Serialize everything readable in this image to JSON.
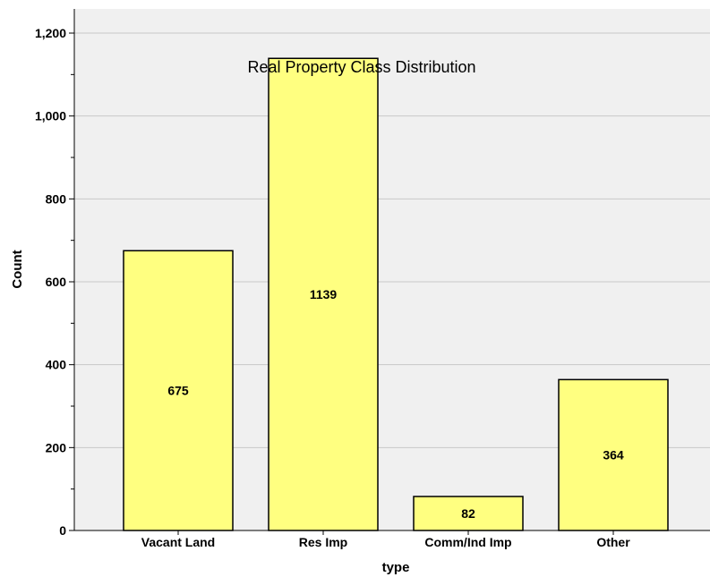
{
  "chart_data": {
    "type": "bar",
    "title": "Real Property Class Distribution",
    "xlabel": "type",
    "ylabel": "Count",
    "categories": [
      "Vacant Land",
      "Res Imp",
      "Comm/Ind Imp",
      "Other"
    ],
    "values": [
      675,
      1139,
      82,
      364
    ],
    "ylim": [
      0,
      1200
    ],
    "yticks": [
      "0",
      "200",
      "400",
      "600",
      "800",
      "1,000",
      "1,200"
    ],
    "ytick_values": [
      0,
      200,
      400,
      600,
      800,
      1000,
      1200
    ],
    "grid": true,
    "colors": {
      "plot_background": "#f0f0f0",
      "bar_fill": "#ffff80",
      "bar_stroke": "#000000",
      "gridline": "#c8c8c8"
    }
  }
}
